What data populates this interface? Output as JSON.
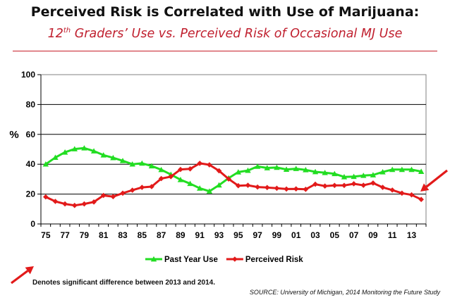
{
  "header": {
    "title": "Perceived Risk is Correlated with Use of Marijuana:",
    "subtitle_grade": "12",
    "subtitle_sup": "th",
    "subtitle_rest": " Graders’ Use vs. Perceived Risk of Occasional MJ Use"
  },
  "chart_data": {
    "type": "line",
    "ylabel": "%",
    "ylim": [
      0,
      100
    ],
    "yticks": [
      0,
      20,
      40,
      60,
      80,
      100
    ],
    "x": [
      "75",
      "76",
      "77",
      "78",
      "79",
      "80",
      "81",
      "82",
      "83",
      "84",
      "85",
      "86",
      "87",
      "88",
      "89",
      "90",
      "91",
      "92",
      "93",
      "94",
      "95",
      "96",
      "97",
      "98",
      "99",
      "00",
      "01",
      "02",
      "03",
      "04",
      "05",
      "06",
      "07",
      "08",
      "09",
      "10",
      "11",
      "12",
      "13",
      "14"
    ],
    "xtick_labels": [
      "75",
      "77",
      "79",
      "81",
      "83",
      "85",
      "87",
      "89",
      "91",
      "93",
      "95",
      "97",
      "99",
      "01",
      "03",
      "05",
      "07",
      "09",
      "11",
      "13"
    ],
    "grid": "horizontal",
    "legend": "bottom",
    "series": [
      {
        "name": "Past Year Use",
        "color": "#22dd22",
        "marker": "triangle",
        "values": [
          40.0,
          44.5,
          48.0,
          50.2,
          50.8,
          48.8,
          46.1,
          44.3,
          42.3,
          40.0,
          40.6,
          38.8,
          36.3,
          33.1,
          29.6,
          27.0,
          23.9,
          21.9,
          26.0,
          30.7,
          34.7,
          35.8,
          38.5,
          37.5,
          37.8,
          36.5,
          37.0,
          36.2,
          34.9,
          34.3,
          33.6,
          31.5,
          31.7,
          32.4,
          32.8,
          34.8,
          36.4,
          36.4,
          36.4,
          35.1
        ]
      },
      {
        "name": "Perceived Risk",
        "color": "#e21a1a",
        "marker": "diamond",
        "values": [
          18.1,
          15.1,
          13.4,
          12.4,
          13.4,
          14.7,
          19.1,
          18.3,
          20.6,
          22.6,
          24.5,
          25.0,
          30.4,
          31.7,
          36.5,
          36.9,
          40.6,
          39.6,
          35.6,
          30.1,
          25.6,
          25.9,
          24.7,
          24.4,
          23.9,
          23.4,
          23.5,
          23.2,
          26.6,
          25.4,
          25.8,
          25.8,
          26.9,
          25.9,
          27.4,
          24.5,
          22.7,
          20.6,
          19.5,
          16.4
        ]
      }
    ]
  },
  "footer": {
    "note": "Denotes significant difference between 2013 and 2014.",
    "source": "SOURCE: University of Michigan, 2014 Monitoring the Future Study"
  },
  "annotation": {
    "arrow_color": "#e21a1a"
  }
}
